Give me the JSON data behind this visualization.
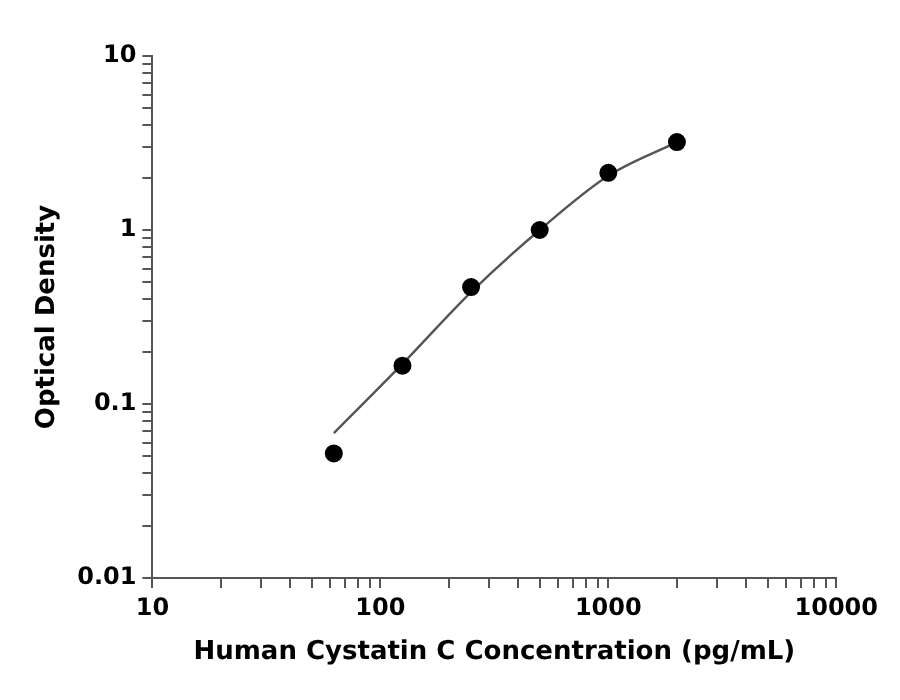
{
  "chart_data": {
    "type": "scatter",
    "xlabel": "Human Cystatin C Concentration (pg/mL)",
    "ylabel": "Optical Density",
    "log": "xy",
    "grid": false,
    "legend": false,
    "xlim": [
      10,
      10000
    ],
    "ylim": [
      0.01,
      10
    ],
    "xticks": [
      10,
      {
        "value": 20,
        "label": null
      },
      {
        "value": 30,
        "label": null
      },
      {
        "value": 40,
        "label": null
      },
      {
        "value": 50,
        "label": null
      },
      {
        "value": 60,
        "label": null
      },
      {
        "value": 70,
        "label": null
      },
      {
        "value": 80,
        "label": null
      },
      {
        "value": 90,
        "label": null
      },
      100,
      {
        "value": 200,
        "label": null
      },
      {
        "value": 300,
        "label": null
      },
      {
        "value": 400,
        "label": null
      },
      {
        "value": 500,
        "label": null
      },
      {
        "value": 600,
        "label": null
      },
      {
        "value": 700,
        "label": null
      },
      {
        "value": 800,
        "label": null
      },
      {
        "value": 900,
        "label": null
      },
      1000,
      {
        "value": 2000,
        "label": null
      },
      {
        "value": 3000,
        "label": null
      },
      {
        "value": 4000,
        "label": null
      },
      {
        "value": 5000,
        "label": null
      },
      {
        "value": 6000,
        "label": null
      },
      {
        "value": 7000,
        "label": null
      },
      {
        "value": 8000,
        "label": null
      },
      {
        "value": 9000,
        "label": null
      },
      10000
    ],
    "yticks": [
      0.01,
      {
        "value": 0.02,
        "label": null
      },
      {
        "value": 0.03,
        "label": null
      },
      {
        "value": 0.04,
        "label": null
      },
      {
        "value": 0.05,
        "label": null
      },
      {
        "value": 0.06,
        "label": null
      },
      {
        "value": 0.07,
        "label": null
      },
      {
        "value": 0.08,
        "label": null
      },
      {
        "value": 0.09,
        "label": null
      },
      0.1,
      {
        "value": 0.2,
        "label": null
      },
      {
        "value": 0.3,
        "label": null
      },
      {
        "value": 0.4,
        "label": null
      },
      {
        "value": 0.5,
        "label": null
      },
      {
        "value": 0.6,
        "label": null
      },
      {
        "value": 0.7,
        "label": null
      },
      {
        "value": 0.8,
        "label": null
      },
      {
        "value": 0.9,
        "label": null
      },
      1,
      {
        "value": 2,
        "label": null
      },
      {
        "value": 3,
        "label": null
      },
      {
        "value": 4,
        "label": null
      },
      {
        "value": 5,
        "label": null
      },
      {
        "value": 6,
        "label": null
      },
      {
        "value": 7,
        "label": null
      },
      {
        "value": 8,
        "label": null
      },
      {
        "value": 9,
        "label": null
      },
      10
    ],
    "series": [
      {
        "type": "scatter",
        "color": "#000000",
        "marker": "circle",
        "x": [
          62.5,
          125,
          250,
          500,
          1000,
          2000
        ],
        "values": [
          0.052,
          0.166,
          0.47,
          1.0,
          2.13,
          3.2
        ]
      },
      {
        "type": "line",
        "color": "#555555",
        "marker": "none",
        "line_style": "solid",
        "x": [
          62.5,
          125,
          250,
          500,
          1000,
          2000
        ],
        "values": [
          0.068,
          0.17,
          0.44,
          1.0,
          2.05,
          3.2
        ]
      }
    ]
  }
}
